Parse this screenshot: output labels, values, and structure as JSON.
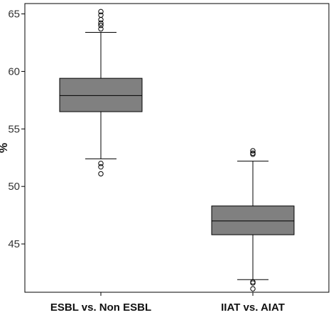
{
  "chart_data": {
    "type": "boxplot",
    "title": "",
    "xlabel": "",
    "ylabel": "%",
    "ylim": [
      40.8,
      65.9
    ],
    "yticks": [
      45,
      50,
      55,
      60,
      65
    ],
    "grid": false,
    "legend": "none",
    "box_color": "#808080",
    "categories": [
      "ESBL vs. Non ESBL",
      "IIAT vs. AIAT"
    ],
    "boxes": [
      {
        "category": "ESBL vs. Non ESBL",
        "whisker_low": 52.4,
        "q1": 56.5,
        "median": 57.9,
        "q3": 59.4,
        "whisker_high": 63.4,
        "outliers": [
          65.2,
          64.9,
          64.5,
          64.2,
          64.0,
          63.7,
          52.0,
          51.7,
          51.1
        ]
      },
      {
        "category": "IIAT vs. AIAT",
        "whisker_low": 41.9,
        "q1": 45.8,
        "median": 47.0,
        "q3": 48.3,
        "whisker_high": 52.2,
        "outliers": [
          53.1,
          52.9,
          52.8,
          41.7,
          41.6,
          41.1
        ]
      }
    ]
  }
}
